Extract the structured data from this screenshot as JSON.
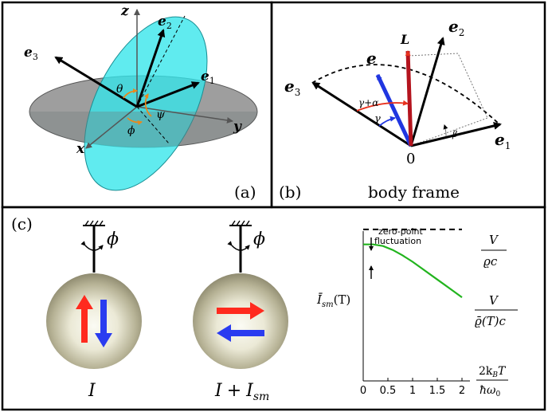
{
  "panel_a": {
    "label": "(a)",
    "axis_z": "z",
    "axis_x": "x",
    "axis_y": "y",
    "vec_e1": "e",
    "vec_e1_sub": "1",
    "vec_e2": "e",
    "vec_e2_sub": "2",
    "vec_e3": "e",
    "vec_e3_sub": "3",
    "angle_theta": "θ",
    "angle_phi": "ϕ",
    "angle_psi": "ψ",
    "colors": {
      "plane": "#8a8a8a",
      "ellipse": "#33e6ea",
      "angle_arc": "#e8891e"
    }
  },
  "panel_b": {
    "label": "(b)",
    "caption": "body frame",
    "origin": "0",
    "vec_e": "e",
    "vec_L": "L",
    "vec_e1": "e",
    "vec_e1_sub": "1",
    "vec_e2": "e",
    "vec_e2_sub": "2",
    "vec_e3": "e",
    "vec_e3_sub": "3",
    "angle_gamma": "γ",
    "angle_gamma_alpha": "γ+α",
    "angle_beta": "β",
    "colors": {
      "e_vector": "#2036e0",
      "L_vector": "#b4141e",
      "arc_red": "#e8321e",
      "arc_blue": "#2036e0"
    }
  },
  "panel_c": {
    "label": "(c)",
    "pendulum1_phi": "ϕ",
    "pendulum1_label": "I",
    "pendulum2_phi": "ϕ",
    "pendulum2_label_I": "I",
    "pendulum2_label_plus": "+",
    "pendulum2_label_Ism": "I",
    "pendulum2_label_sm": "sm",
    "colors": {
      "arrow_red": "#ff2a1e",
      "arrow_blue": "#2a3cf0",
      "sphere": "#b8b497",
      "curve": "#22b41e"
    }
  },
  "chart_data": {
    "type": "line",
    "annotation_line1": "zero-point",
    "annotation_line2": "fluctuation",
    "ylabel_main": "Ī",
    "ylabel_sub": "sm",
    "ylabel_arg": "(T)",
    "upper_label_num": "V",
    "upper_label_den": "ϱc",
    "lower_label_num": "V",
    "lower_label_den": "ϱ̄(T)c",
    "xlabel_num": "2k",
    "xlabel_num_sub": "B",
    "xlabel_num_tail": "T",
    "xlabel_den": "ħω",
    "xlabel_den_sub": "0",
    "x_ticks": [
      "0",
      "0.5",
      "1",
      "1.5",
      "2"
    ],
    "xlim": [
      0,
      2
    ],
    "ylim": [
      0,
      1
    ],
    "classical_level": 0.96,
    "series": [
      {
        "x": [
          0,
          0.2,
          0.4,
          0.6,
          0.8,
          1.0,
          1.2,
          1.4,
          1.6,
          1.8,
          2.0
        ],
        "y": [
          0.865,
          0.865,
          0.855,
          0.83,
          0.795,
          0.755,
          0.71,
          0.665,
          0.62,
          0.575,
          0.53
        ]
      }
    ]
  }
}
